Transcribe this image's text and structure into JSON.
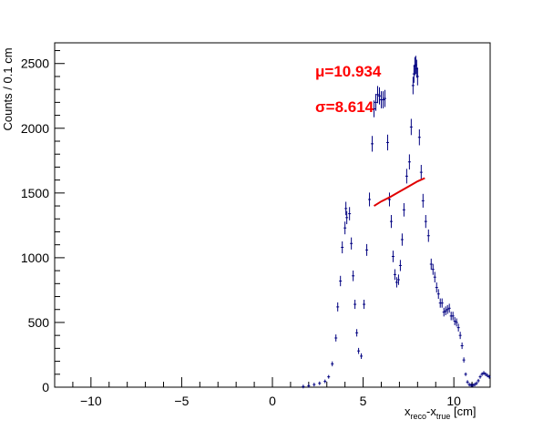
{
  "chart_data": {
    "type": "scatter",
    "title": "",
    "xlabel_main": "x",
    "xlabel_sub1": "reco",
    "xlabel_mid": "-x",
    "xlabel_sub2": "true",
    "xlabel_unit": " [cm]",
    "ylabel": "Counts / 0.1 cm",
    "xlim": [
      -12,
      12
    ],
    "ylim": [
      0,
      2660
    ],
    "x_ticks": [
      -10,
      -5,
      0,
      5,
      10
    ],
    "x_tick_labels": [
      "−10",
      "−5",
      "0",
      "5",
      "10"
    ],
    "y_ticks": [
      0,
      500,
      1000,
      1500,
      2000,
      2500
    ],
    "y_tick_labels": [
      "0",
      "500",
      "1000",
      "1500",
      "2000",
      "2500"
    ],
    "series": [
      {
        "name": "data",
        "color": "#000080",
        "x": [
          1.7,
          2.0,
          2.3,
          2.6,
          2.9,
          3.1,
          3.3,
          3.5,
          3.6,
          3.75,
          3.85,
          4.0,
          4.05,
          4.1,
          4.25,
          4.35,
          4.45,
          4.55,
          4.65,
          4.75,
          4.9,
          5.05,
          5.2,
          5.35,
          5.5,
          5.6,
          5.7,
          5.8,
          5.9,
          6.0,
          6.1,
          6.2,
          6.35,
          6.45,
          6.55,
          6.65,
          6.75,
          6.85,
          6.95,
          7.05,
          7.15,
          7.25,
          7.4,
          7.55,
          7.65,
          7.75,
          7.8,
          7.85,
          7.9,
          7.95,
          8.0,
          8.1,
          8.2,
          8.3,
          8.45,
          8.6,
          8.75,
          8.85,
          8.95,
          9.05,
          9.15,
          9.25,
          9.35,
          9.45,
          9.55,
          9.65,
          9.75,
          9.85,
          9.95,
          10.05,
          10.15,
          10.25,
          10.35,
          10.45,
          10.55,
          10.65,
          10.75,
          10.85,
          10.95,
          11.05,
          11.15,
          11.25,
          11.35,
          11.45,
          11.55,
          11.65,
          11.75,
          11.85,
          11.95
        ],
        "y": [
          5,
          10,
          20,
          30,
          45,
          80,
          180,
          380,
          620,
          820,
          1080,
          1230,
          1380,
          1310,
          1340,
          1110,
          860,
          640,
          420,
          280,
          240,
          640,
          1060,
          1450,
          1880,
          2150,
          2200,
          2260,
          2250,
          2220,
          2220,
          2230,
          1890,
          1450,
          1280,
          1010,
          870,
          810,
          830,
          940,
          1140,
          1370,
          1630,
          1740,
          2010,
          2330,
          2420,
          2480,
          2490,
          2460,
          2400,
          1930,
          1660,
          1440,
          1280,
          1170,
          950,
          910,
          850,
          770,
          720,
          650,
          650,
          580,
          590,
          600,
          610,
          550,
          550,
          510,
          500,
          460,
          400,
          320,
          210,
          100,
          40,
          20,
          15,
          15,
          20,
          30,
          50,
          80,
          100,
          110,
          100,
          90,
          80
        ]
      }
    ],
    "fit": {
      "color": "#e00000",
      "x": [
        5.6,
        6.0,
        6.5,
        7.0,
        7.5,
        8.0,
        8.4
      ],
      "y": [
        1400,
        1435,
        1470,
        1510,
        1550,
        1590,
        1615
      ]
    },
    "annotations": {
      "mu_symbol": "μ",
      "mu_text": "=10.934",
      "sigma_symbol": "σ",
      "sigma_text": "=8.614"
    }
  }
}
